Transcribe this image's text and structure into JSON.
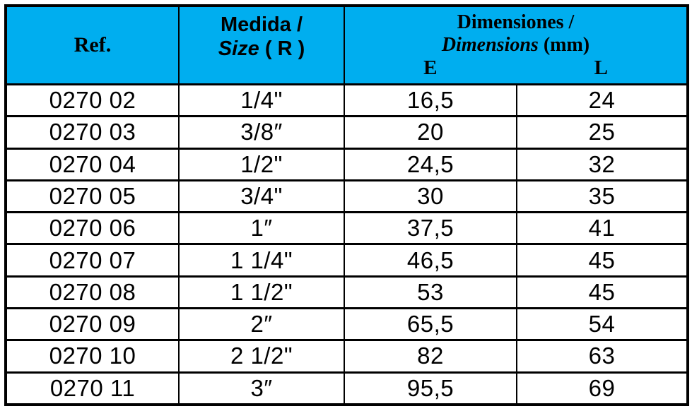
{
  "table": {
    "header": {
      "ref_label": "Ref.",
      "medida_line1": "Medida /",
      "medida_size_italic": "Size",
      "medida_size_suffix": " ( R )",
      "dim_line1": "Dimensiones /",
      "dim_line2_italic": "Dimensions",
      "dim_line2_suffix": " (mm)",
      "col_e": "E",
      "col_l": "L"
    },
    "rows": [
      {
        "ref": "0270 02",
        "size": "1/4\"",
        "e": "16,5",
        "l": "24"
      },
      {
        "ref": "0270 03",
        "size": "3/8″",
        "e": "20",
        "l": "25"
      },
      {
        "ref": "0270 04",
        "size": "1/2\"",
        "e": "24,5",
        "l": "32"
      },
      {
        "ref": "0270 05",
        "size": "3/4\"",
        "e": "30",
        "l": "35"
      },
      {
        "ref": "0270 06",
        "size": "1″",
        "e": "37,5",
        "l": "41"
      },
      {
        "ref": "0270 07",
        "size": "1 1/4\"",
        "e": "46,5",
        "l": "45"
      },
      {
        "ref": "0270 08",
        "size": "1 1/2\"",
        "e": "53",
        "l": "45"
      },
      {
        "ref": "0270 09",
        "size": "2″",
        "e": "65,5",
        "l": "54"
      },
      {
        "ref": "0270 10",
        "size": "2 1/2\"",
        "e": "82",
        "l": "63"
      },
      {
        "ref": "0270 11",
        "size": "3″",
        "e": "95,5",
        "l": "69"
      }
    ],
    "colors": {
      "header_bg": "#00AEEF",
      "border": "#000000",
      "text": "#000000"
    }
  }
}
